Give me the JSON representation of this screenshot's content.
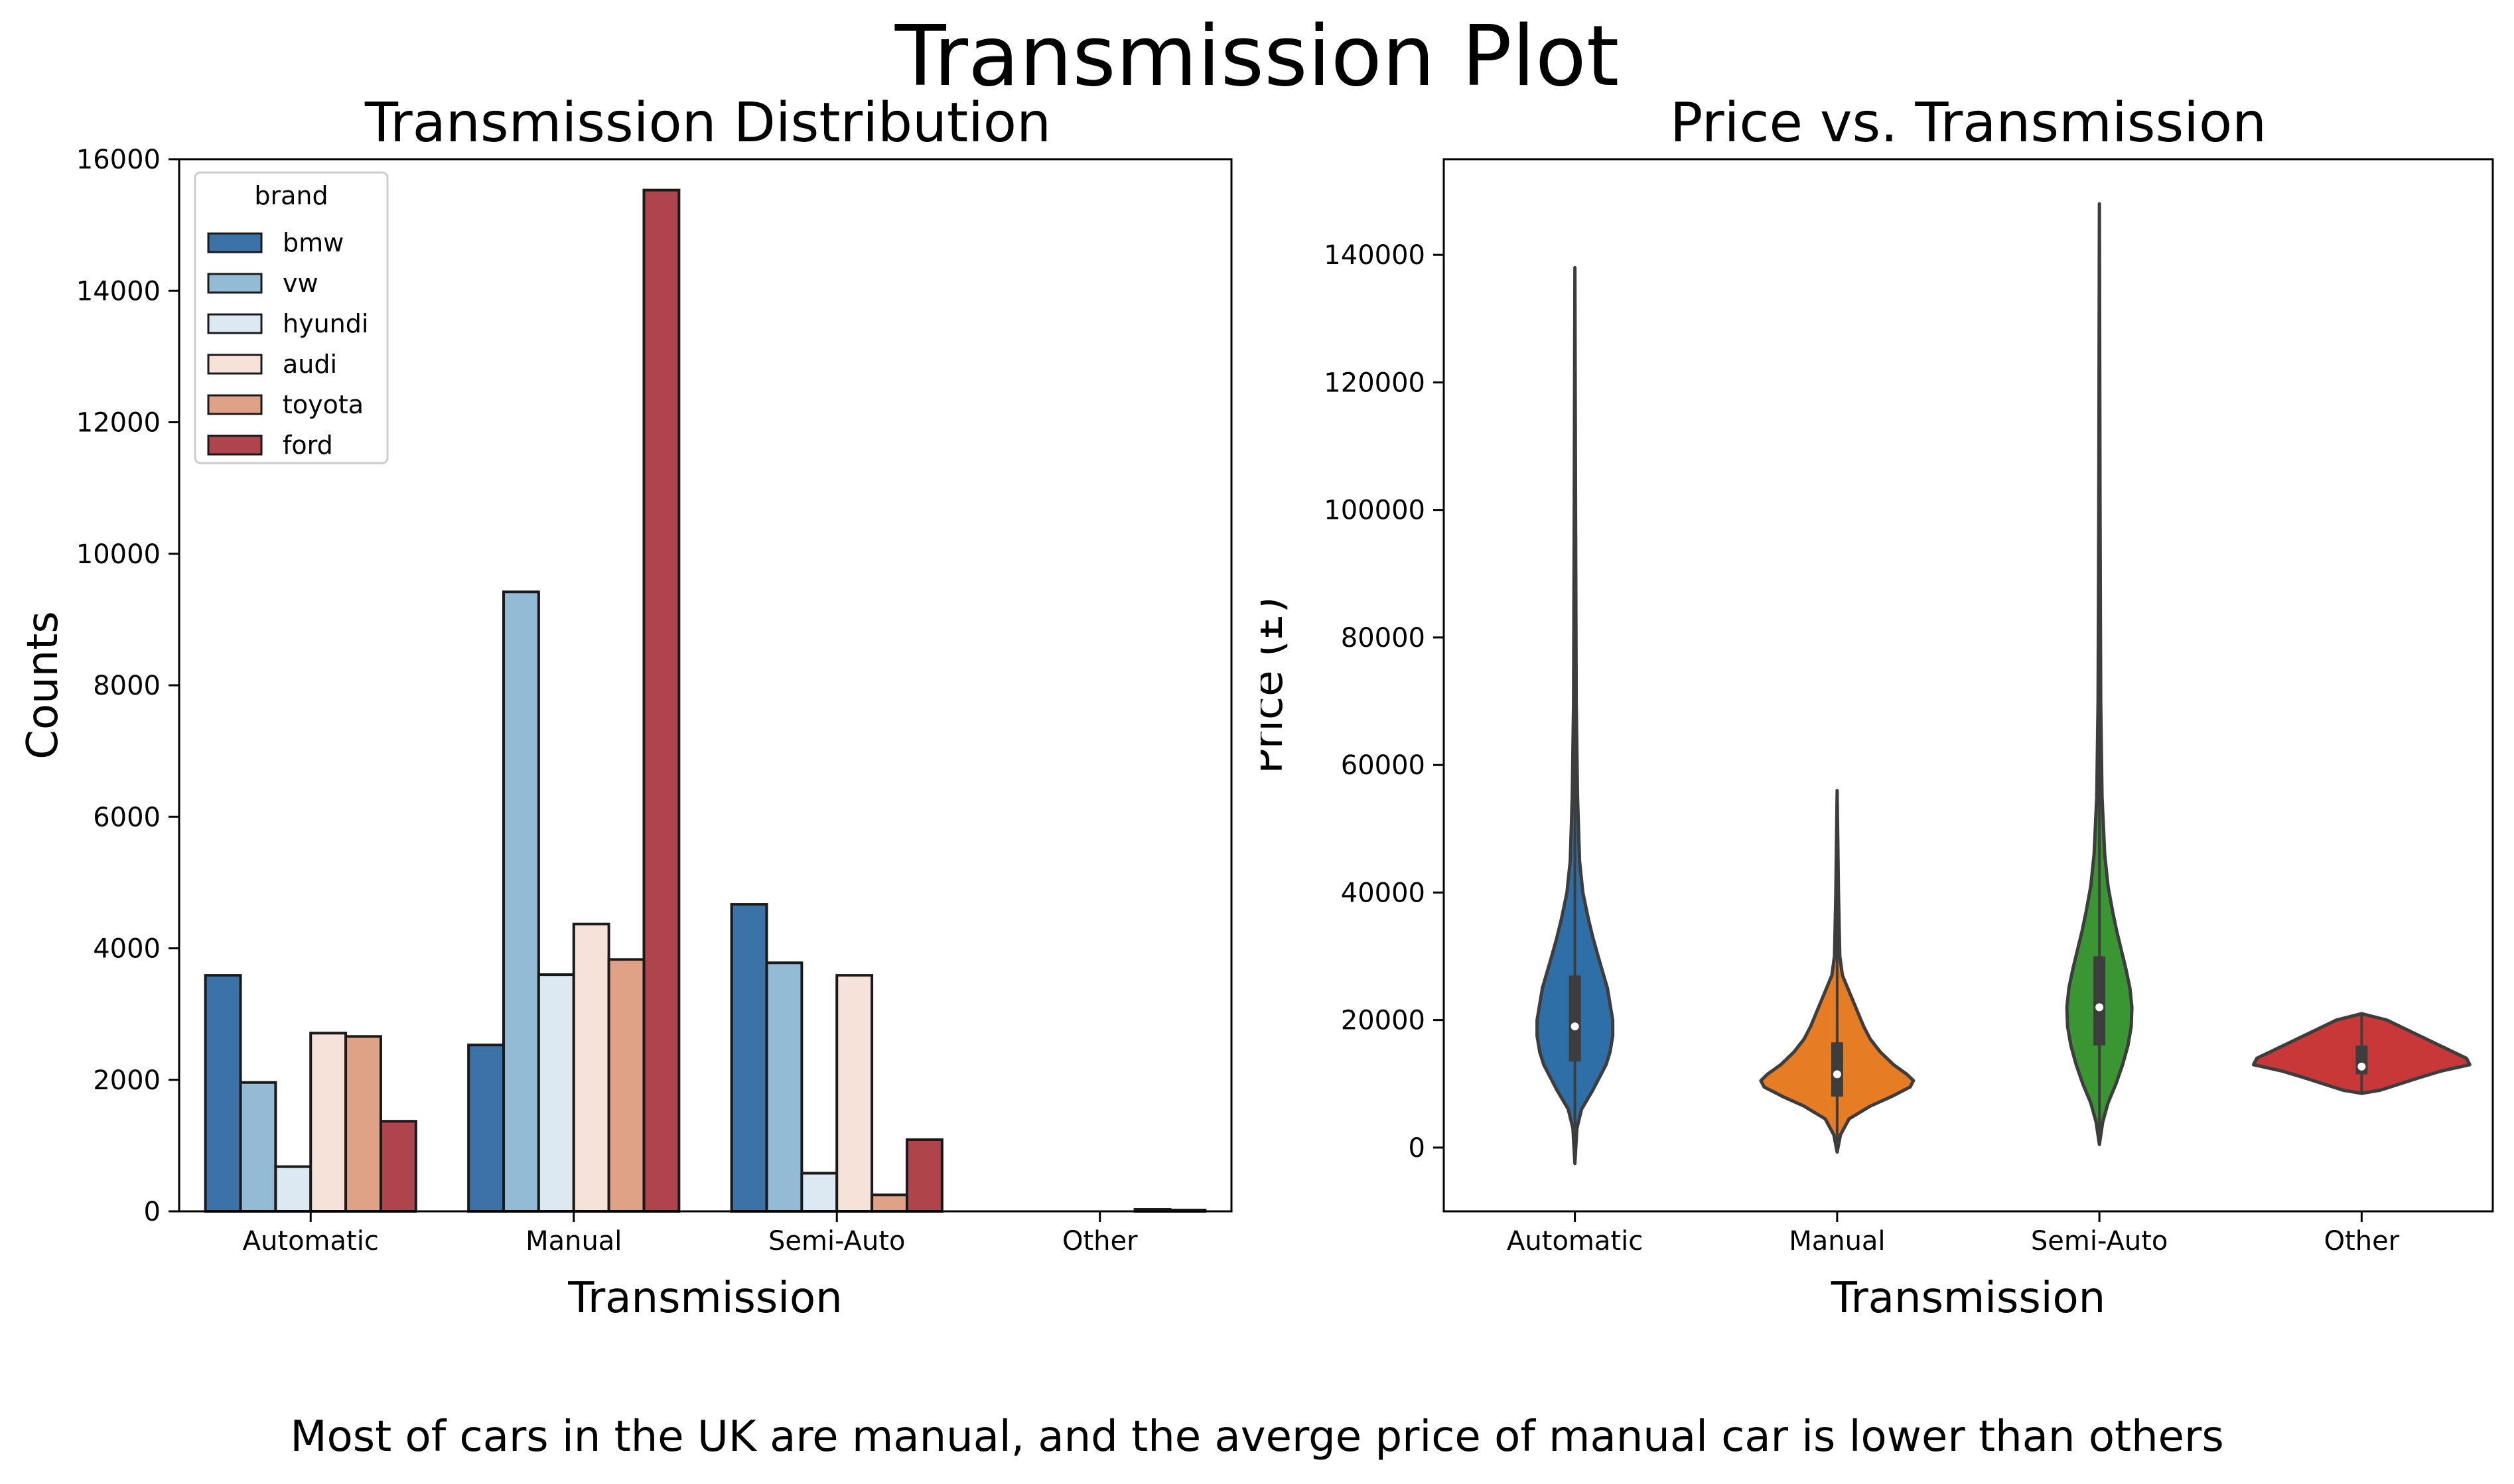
{
  "suptitle": "Transmission Plot",
  "caption": "Most of cars in the UK are manual, and the averge price of manual car is lower than others",
  "chart_data": [
    {
      "type": "bar",
      "title": "Transmission Distribution",
      "xlabel": "Transmission",
      "ylabel": "Counts",
      "categories": [
        "Automatic",
        "Manual",
        "Semi-Auto",
        "Other"
      ],
      "ylim": [
        0,
        16000
      ],
      "yticks": [
        0,
        2000,
        4000,
        6000,
        8000,
        10000,
        12000,
        14000,
        16000
      ],
      "legend": {
        "title": "brand",
        "position": "upper-left"
      },
      "series": [
        {
          "name": "bmw",
          "color": "#3b72a8",
          "values": [
            3590,
            2530,
            4670,
            0
          ]
        },
        {
          "name": "vw",
          "color": "#93bbd6",
          "values": [
            1960,
            9420,
            3780,
            0
          ]
        },
        {
          "name": "hyundi",
          "color": "#dde9f2",
          "values": [
            680,
            3600,
            580,
            0
          ]
        },
        {
          "name": "audi",
          "color": "#f6e2d9",
          "values": [
            2710,
            4370,
            3590,
            0
          ]
        },
        {
          "name": "toyota",
          "color": "#e0a287",
          "values": [
            2660,
            3830,
            250,
            30
          ]
        },
        {
          "name": "ford",
          "color": "#b0444c",
          "values": [
            1370,
            15530,
            1090,
            20
          ]
        }
      ]
    },
    {
      "type": "violin",
      "title": "Price vs. Transmission",
      "xlabel": "Transmission",
      "ylabel": "Price (£)",
      "categories": [
        "Automatic",
        "Manual",
        "Semi-Auto",
        "Other"
      ],
      "ylim": [
        -10000,
        155000
      ],
      "yticks": [
        0,
        20000,
        40000,
        60000,
        80000,
        100000,
        120000,
        140000
      ],
      "violins": [
        {
          "name": "Automatic",
          "color": "#2f6fa8",
          "min": -2500,
          "max": 138000,
          "q1": 13500,
          "median": 19000,
          "q3": 27000,
          "profile": [
            [
              -2500,
              0
            ],
            [
              3000,
              3
            ],
            [
              6000,
              10
            ],
            [
              9000,
              27
            ],
            [
              11000,
              37
            ],
            [
              13000,
              47
            ],
            [
              15000,
              53
            ],
            [
              17500,
              57
            ],
            [
              20000,
              57
            ],
            [
              22500,
              53
            ],
            [
              25000,
              49
            ],
            [
              27500,
              42
            ],
            [
              30000,
              35
            ],
            [
              33000,
              27
            ],
            [
              36000,
              20
            ],
            [
              40000,
              12
            ],
            [
              45000,
              7
            ],
            [
              55000,
              4
            ],
            [
              70000,
              2
            ],
            [
              100000,
              1
            ],
            [
              138000,
              0
            ]
          ]
        },
        {
          "name": "Manual",
          "color": "#e67d25",
          "min": -700,
          "max": 56000,
          "q1": 8000,
          "median": 11500,
          "q3": 16500,
          "profile": [
            [
              -700,
              0
            ],
            [
              2000,
              5
            ],
            [
              4500,
              18
            ],
            [
              6500,
              50
            ],
            [
              8000,
              82
            ],
            [
              9500,
              110
            ],
            [
              10500,
              115
            ],
            [
              11500,
              105
            ],
            [
              13000,
              85
            ],
            [
              15000,
              65
            ],
            [
              17000,
              50
            ],
            [
              19000,
              40
            ],
            [
              21000,
              32
            ],
            [
              23000,
              24
            ],
            [
              25000,
              16
            ],
            [
              27000,
              8
            ],
            [
              30000,
              4
            ],
            [
              40000,
              2
            ],
            [
              56000,
              0
            ]
          ]
        },
        {
          "name": "Semi-Auto",
          "color": "#3a9633",
          "min": 500,
          "max": 148000,
          "q1": 16000,
          "median": 22000,
          "q3": 30000,
          "profile": [
            [
              500,
              0
            ],
            [
              4000,
              5
            ],
            [
              7000,
              13
            ],
            [
              10000,
              25
            ],
            [
              13000,
              35
            ],
            [
              16000,
              43
            ],
            [
              19000,
              48
            ],
            [
              22000,
              49
            ],
            [
              25000,
              46
            ],
            [
              28000,
              40
            ],
            [
              31000,
              33
            ],
            [
              34000,
              26
            ],
            [
              37000,
              20
            ],
            [
              41000,
              13
            ],
            [
              46000,
              8
            ],
            [
              55000,
              4
            ],
            [
              70000,
              2
            ],
            [
              100000,
              1
            ],
            [
              148000,
              0
            ]
          ]
        },
        {
          "name": "Other",
          "color": "#c83838",
          "min": 8500,
          "max": 21000,
          "q1": 11500,
          "median": 12700,
          "q3": 16000,
          "profile": [
            [
              8500,
              0
            ],
            [
              9000,
              28
            ],
            [
              10000,
              58
            ],
            [
              11000,
              88
            ],
            [
              12000,
              120
            ],
            [
              13000,
              163
            ],
            [
              14000,
              158
            ],
            [
              15000,
              138
            ],
            [
              16000,
              118
            ],
            [
              17000,
              98
            ],
            [
              18000,
              78
            ],
            [
              19000,
              58
            ],
            [
              20000,
              38
            ],
            [
              21000,
              0
            ]
          ]
        }
      ]
    }
  ]
}
